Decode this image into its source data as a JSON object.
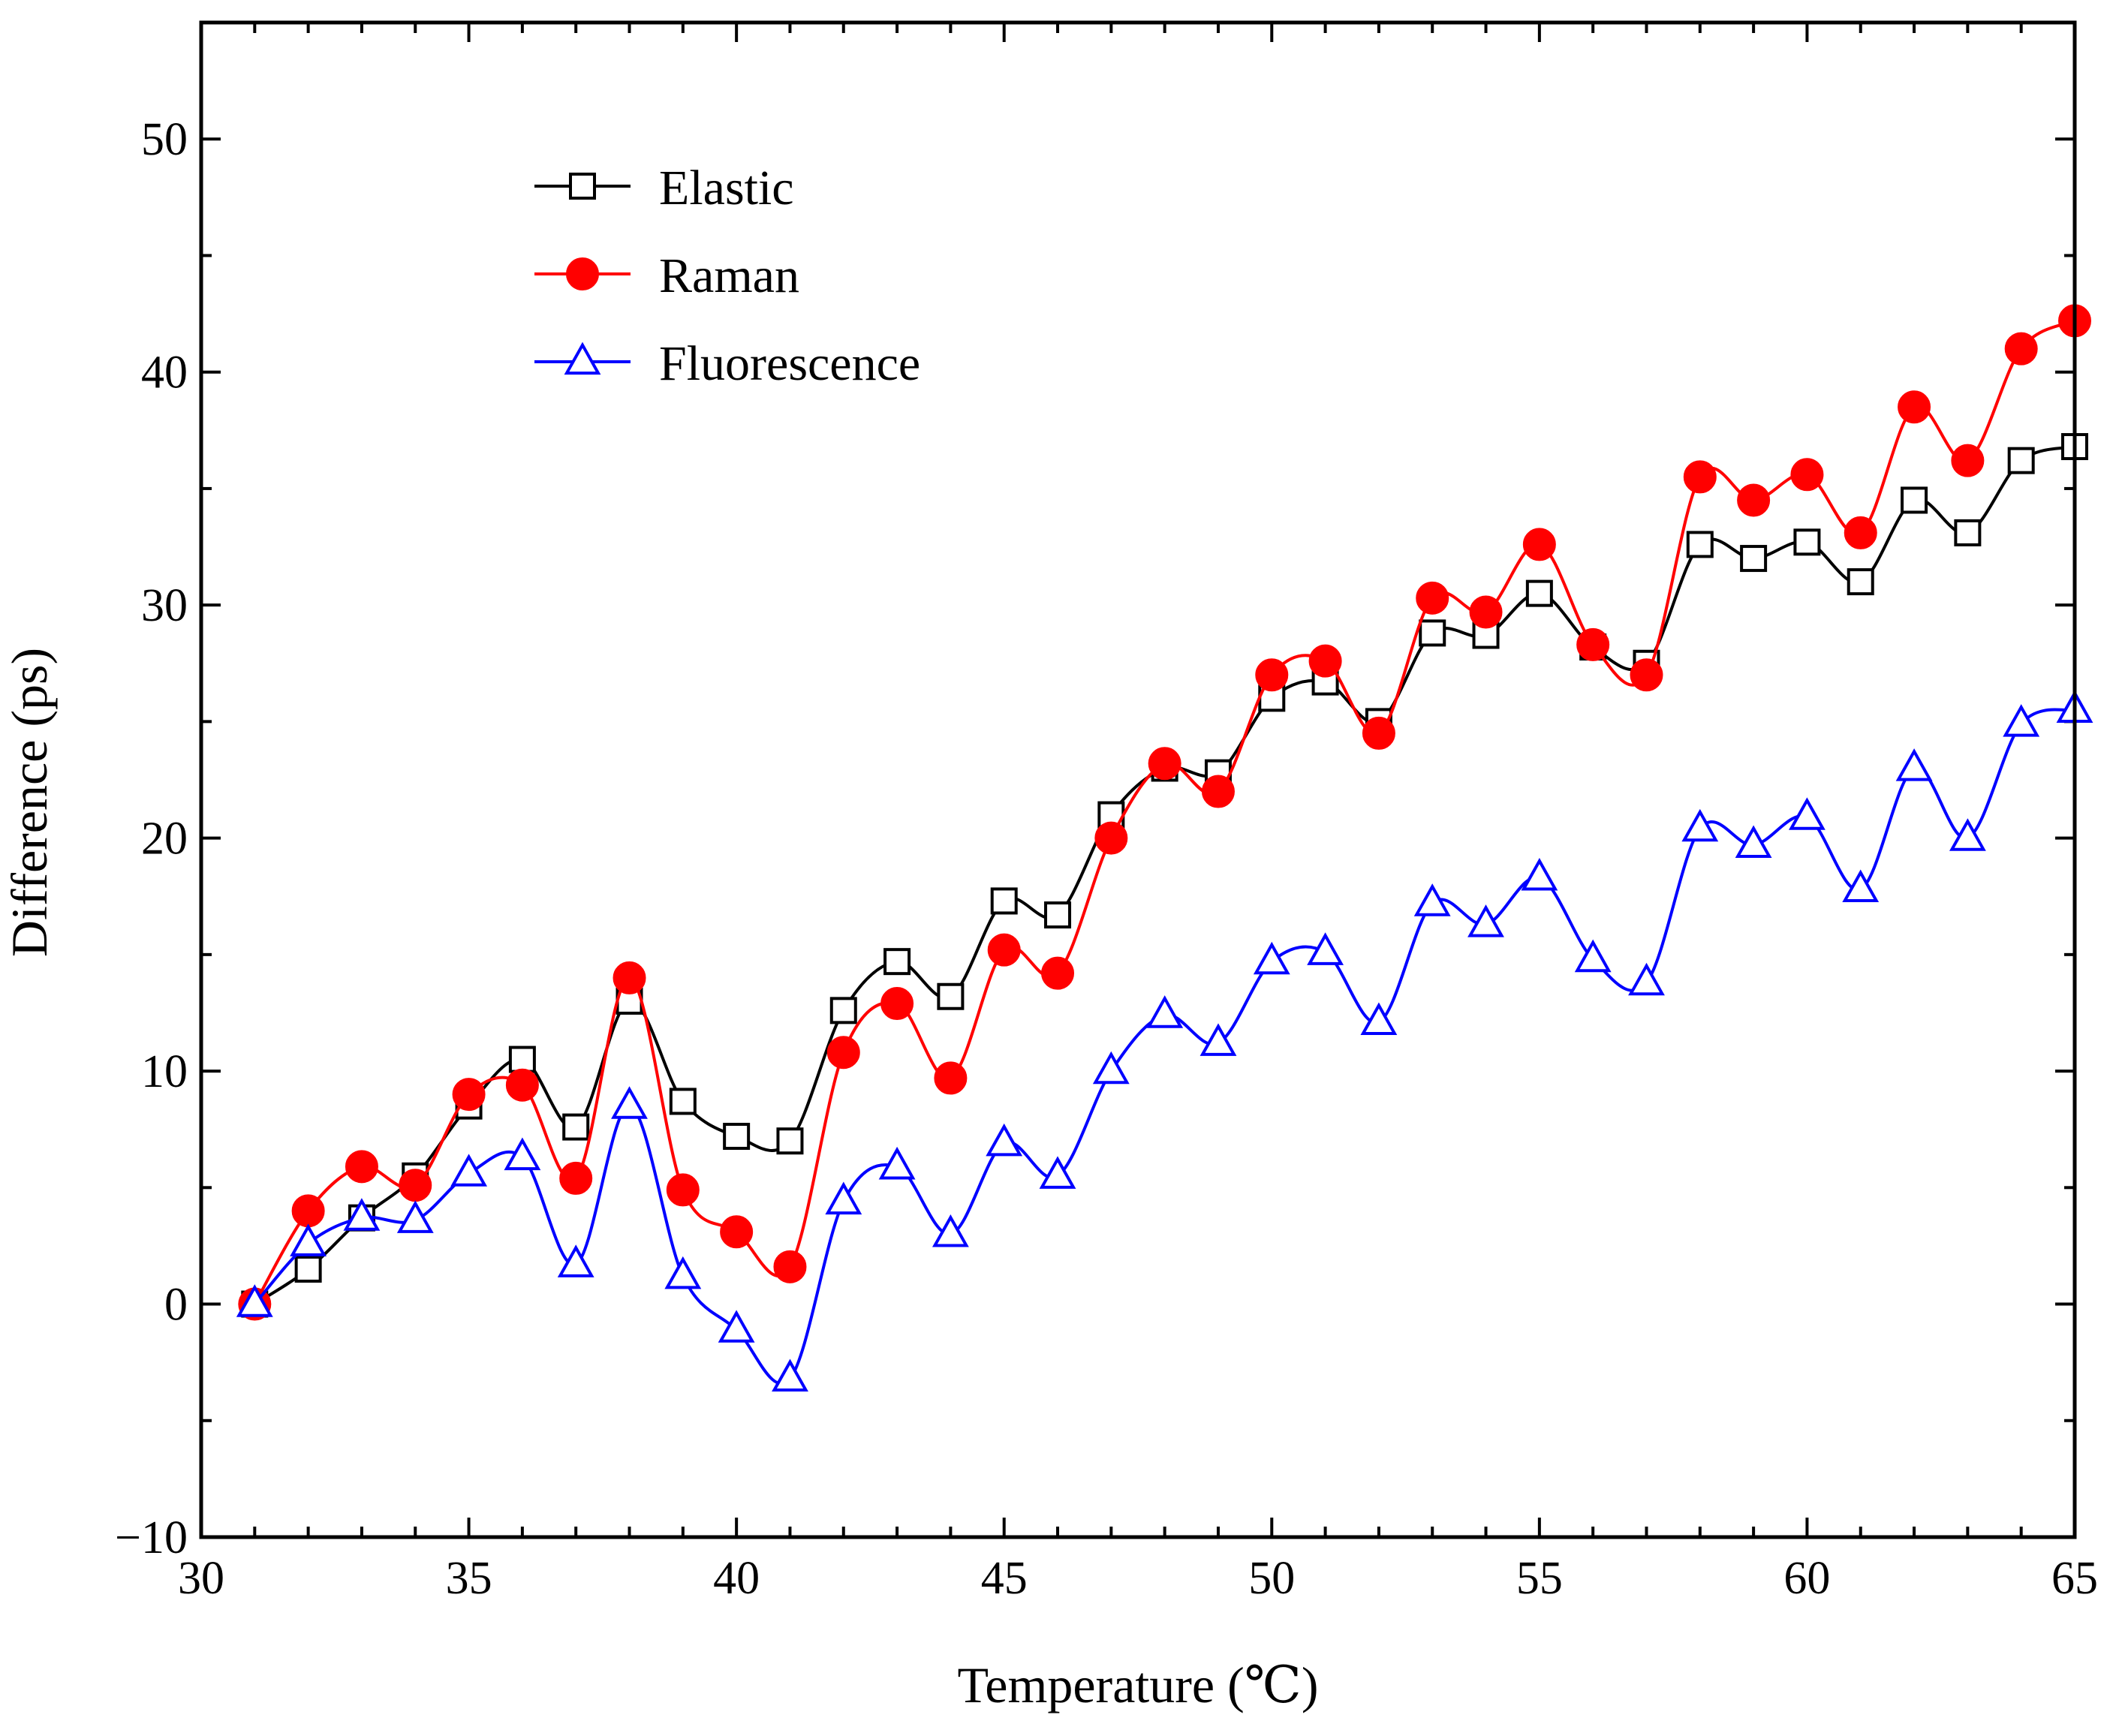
{
  "chart_data": {
    "type": "line",
    "title": "",
    "xlabel": "Temperature (℃)",
    "ylabel": "Difference (ps)",
    "xlim": [
      30,
      65
    ],
    "ylim": [
      -10,
      55
    ],
    "x_ticks": [
      30,
      35,
      40,
      45,
      50,
      55,
      60,
      65
    ],
    "x_tick_labels": [
      "30",
      "35",
      "40",
      "45",
      "50",
      "55",
      "60",
      "65"
    ],
    "y_ticks": [
      -10,
      0,
      10,
      20,
      30,
      40,
      50
    ],
    "y_tick_labels": [
      "−10",
      "0",
      "10",
      "20",
      "30",
      "40",
      "50"
    ],
    "x_minor_step": 1,
    "y_minor_step": 5,
    "grid": false,
    "legend_position": "top-left",
    "x": [
      31,
      32,
      33,
      34,
      35,
      36,
      37,
      38,
      39,
      40,
      41,
      42,
      43,
      44,
      45,
      46,
      47,
      48,
      49,
      50,
      51,
      52,
      53,
      54,
      55,
      56,
      57,
      58,
      59,
      60,
      61,
      62,
      63,
      64,
      65
    ],
    "series": [
      {
        "name": "Elastic",
        "marker": "open-square",
        "color": "#000000",
        "values": [
          0,
          1.5,
          3.7,
          5.5,
          8.5,
          10.5,
          7.6,
          13.0,
          8.7,
          7.2,
          7.0,
          12.6,
          14.7,
          13.2,
          17.3,
          16.7,
          21.0,
          23.0,
          22.8,
          26.0,
          26.7,
          25.0,
          28.8,
          28.7,
          30.5,
          28.2,
          27.5,
          32.6,
          32.0,
          32.7,
          31.0,
          34.5,
          33.1,
          36.2,
          36.8
        ]
      },
      {
        "name": "Raman",
        "marker": "filled-circle",
        "color": "#ff0000",
        "values": [
          0,
          4.0,
          5.9,
          5.1,
          9.0,
          9.4,
          5.4,
          14.0,
          4.9,
          3.1,
          1.6,
          10.8,
          12.9,
          9.7,
          15.2,
          14.2,
          20.0,
          23.2,
          22.0,
          27.0,
          27.6,
          24.5,
          30.3,
          29.7,
          32.6,
          28.3,
          27.0,
          35.5,
          34.5,
          35.6,
          33.1,
          38.5,
          36.2,
          41.0,
          42.2
        ]
      },
      {
        "name": "Fluorescence",
        "marker": "open-triangle",
        "color": "#0000ff",
        "values": [
          0,
          2.6,
          3.7,
          3.6,
          5.6,
          6.3,
          1.7,
          8.5,
          1.2,
          -1.1,
          -3.2,
          4.4,
          5.9,
          3.0,
          6.9,
          5.5,
          10.0,
          12.4,
          11.2,
          14.7,
          15.1,
          12.1,
          17.2,
          16.3,
          18.3,
          14.8,
          13.8,
          20.4,
          19.7,
          20.9,
          17.8,
          23.0,
          20.0,
          24.9,
          25.5
        ]
      }
    ]
  }
}
